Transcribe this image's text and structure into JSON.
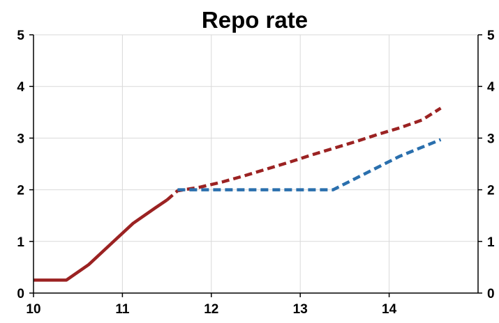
{
  "chart_data": {
    "type": "line",
    "title": "Repo rate",
    "xlabel": "",
    "ylabel": "",
    "xlim": [
      10,
      15
    ],
    "ylim": [
      0,
      5
    ],
    "x_ticks": [
      10,
      11,
      12,
      13,
      14
    ],
    "y_ticks": [
      0,
      1,
      2,
      3,
      4,
      5
    ],
    "y_right_ticks": [
      0,
      1,
      2,
      3,
      4,
      5
    ],
    "grid": true,
    "legend": "none",
    "series": [
      {
        "color": "#9b2222",
        "style": "solid",
        "x": [
          10.0,
          10.37,
          10.62,
          10.87,
          11.12,
          11.37,
          11.5
        ],
        "y": [
          0.25,
          0.25,
          0.55,
          0.95,
          1.35,
          1.65,
          1.8
        ]
      },
      {
        "color": "#9b2222",
        "style": "dashed",
        "x": [
          11.5,
          11.62,
          11.87,
          12.12,
          12.37,
          12.62,
          12.87,
          13.12,
          13.37,
          13.62,
          13.87,
          14.12,
          14.37,
          14.58
        ],
        "y": [
          1.8,
          1.98,
          2.05,
          2.15,
          2.27,
          2.4,
          2.53,
          2.67,
          2.8,
          2.93,
          3.07,
          3.2,
          3.35,
          3.58
        ]
      },
      {
        "color": "#2a6fad",
        "style": "dashed",
        "x": [
          11.62,
          12.0,
          12.5,
          13.0,
          13.37,
          13.75,
          14.12,
          14.58
        ],
        "y": [
          2.0,
          2.0,
          2.0,
          2.0,
          2.0,
          2.33,
          2.65,
          2.97
        ]
      }
    ]
  }
}
